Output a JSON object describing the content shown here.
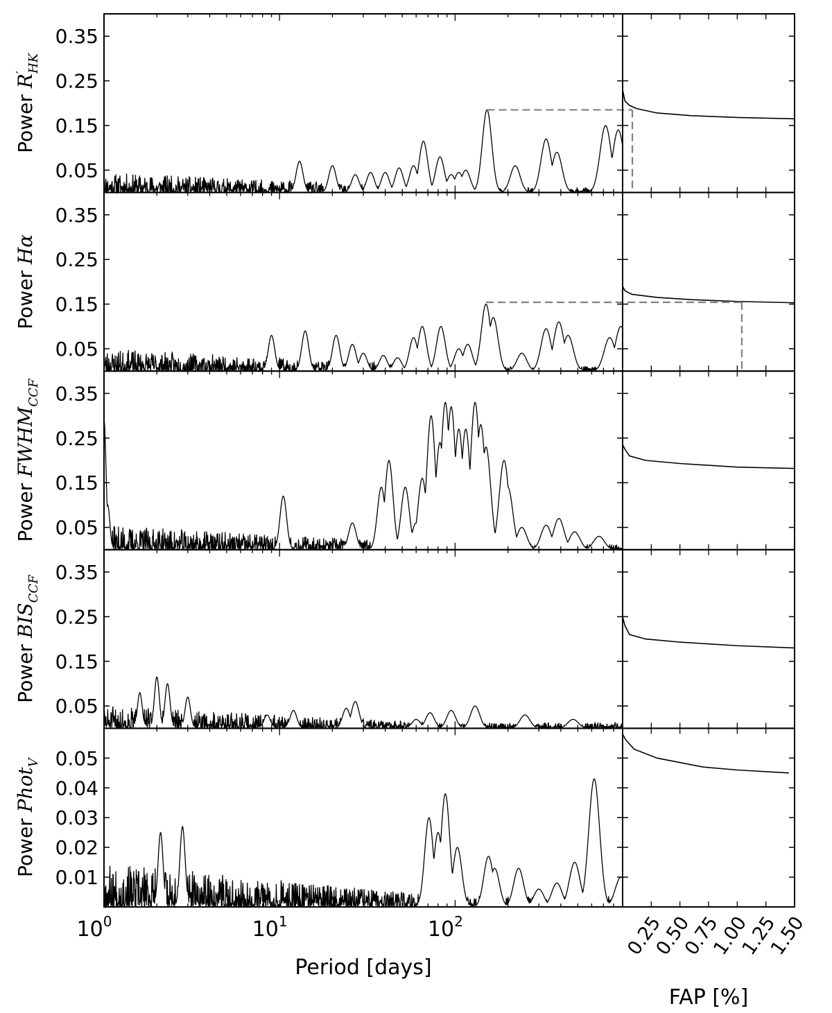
{
  "chart_data": {
    "type": "line",
    "x_axis": {
      "label": "Period [days]",
      "scale": "log",
      "range": [
        1,
        900
      ],
      "ticks": [
        {
          "value": 1,
          "base": "10",
          "exp": "0"
        },
        {
          "value": 10,
          "base": "10",
          "exp": "1"
        },
        {
          "value": 100,
          "base": "10",
          "exp": "2"
        }
      ]
    },
    "fap_axis": {
      "label": "FAP [%]",
      "range": [
        0,
        1.5
      ],
      "ticks": [
        "0.25",
        "0.50",
        "0.75",
        "1.00",
        "1.25",
        "1.50"
      ],
      "tick_values": [
        0.25,
        0.5,
        0.75,
        1.0,
        1.25,
        1.5
      ]
    },
    "line_color": "#000000",
    "threshold_color": "#808080",
    "panels": [
      {
        "id": "rhk",
        "ylabel_prefix": "Power ",
        "ylabel_math": "R",
        "ylabel_sup": "′",
        "ylabel_sub": "HK",
        "ylim": [
          0,
          0.4
        ],
        "yticks": [
          "0.35",
          "0.25",
          "0.15",
          "0.05"
        ],
        "ytick_values": [
          0.35,
          0.25,
          0.15,
          0.05
        ],
        "seed": 11,
        "noise_amp": 0.045,
        "peaks": [
          [
            13,
            0.07
          ],
          [
            20,
            0.06
          ],
          [
            27,
            0.04
          ],
          [
            33,
            0.045
          ],
          [
            40,
            0.045
          ],
          [
            48,
            0.055
          ],
          [
            58,
            0.06
          ],
          [
            66,
            0.115
          ],
          [
            82,
            0.08
          ],
          [
            95,
            0.04
          ],
          [
            105,
            0.045
          ],
          [
            115,
            0.05
          ],
          [
            152,
            0.185
          ],
          [
            220,
            0.06
          ],
          [
            330,
            0.12
          ],
          [
            380,
            0.09
          ],
          [
            720,
            0.15
          ],
          [
            850,
            0.14
          ]
        ],
        "threshold": {
          "period": 152,
          "power": 0.185,
          "fap": 0.085
        },
        "fap_curve": [
          [
            0.0,
            0.23
          ],
          [
            0.02,
            0.205
          ],
          [
            0.06,
            0.195
          ],
          [
            0.12,
            0.188
          ],
          [
            0.3,
            0.178
          ],
          [
            0.6,
            0.172
          ],
          [
            1.0,
            0.168
          ],
          [
            1.5,
            0.165
          ]
        ]
      },
      {
        "id": "halpha",
        "ylabel_prefix": "Power ",
        "ylabel_math": "Hα",
        "ylabel_sup": "",
        "ylabel_sub": "",
        "ylim": [
          0,
          0.4
        ],
        "yticks": [
          "0.35",
          "0.25",
          "0.15",
          "0.05"
        ],
        "ytick_values": [
          0.35,
          0.25,
          0.15,
          0.05
        ],
        "seed": 23,
        "noise_amp": 0.05,
        "peaks": [
          [
            9,
            0.08
          ],
          [
            14,
            0.09
          ],
          [
            21,
            0.08
          ],
          [
            26,
            0.06
          ],
          [
            30,
            0.04
          ],
          [
            39,
            0.035
          ],
          [
            47,
            0.03
          ],
          [
            58,
            0.075
          ],
          [
            65,
            0.1
          ],
          [
            83,
            0.1
          ],
          [
            105,
            0.05
          ],
          [
            118,
            0.06
          ],
          [
            150,
            0.15
          ],
          [
            165,
            0.12
          ],
          [
            240,
            0.04
          ],
          [
            330,
            0.095
          ],
          [
            390,
            0.11
          ],
          [
            440,
            0.08
          ],
          [
            760,
            0.075
          ],
          [
            880,
            0.1
          ]
        ],
        "threshold": {
          "period": 150,
          "power": 0.154,
          "fap": 1.04
        },
        "fap_curve": [
          [
            0.0,
            0.19
          ],
          [
            0.02,
            0.18
          ],
          [
            0.08,
            0.172
          ],
          [
            0.3,
            0.165
          ],
          [
            0.6,
            0.16
          ],
          [
            1.0,
            0.156
          ],
          [
            1.5,
            0.153
          ]
        ]
      },
      {
        "id": "fwhm",
        "ylabel_prefix": "Power ",
        "ylabel_math": "FWHM",
        "ylabel_sup": "",
        "ylabel_sub": "CCF",
        "ylim": [
          0,
          0.4
        ],
        "yticks": [
          "0.35",
          "0.25",
          "0.15",
          "0.05"
        ],
        "ytick_values": [
          0.35,
          0.25,
          0.15,
          0.05
        ],
        "seed": 37,
        "noise_amp": 0.055,
        "peaks": [
          [
            1.0,
            0.29
          ],
          [
            1.05,
            0.1
          ],
          [
            10.5,
            0.12
          ],
          [
            26,
            0.06
          ],
          [
            38,
            0.14
          ],
          [
            42,
            0.2
          ],
          [
            52,
            0.14
          ],
          [
            60,
            0.06
          ],
          [
            65,
            0.16
          ],
          [
            73,
            0.3
          ],
          [
            82,
            0.24
          ],
          [
            88,
            0.33
          ],
          [
            95,
            0.32
          ],
          [
            105,
            0.27
          ],
          [
            115,
            0.27
          ],
          [
            130,
            0.33
          ],
          [
            140,
            0.28
          ],
          [
            150,
            0.23
          ],
          [
            190,
            0.2
          ],
          [
            200,
            0.14
          ],
          [
            240,
            0.05
          ],
          [
            330,
            0.055
          ],
          [
            390,
            0.07
          ],
          [
            480,
            0.04
          ],
          [
            660,
            0.03
          ]
        ],
        "threshold": null,
        "fap_curve": [
          [
            0.0,
            0.235
          ],
          [
            0.02,
            0.225
          ],
          [
            0.06,
            0.21
          ],
          [
            0.2,
            0.2
          ],
          [
            0.5,
            0.193
          ],
          [
            1.0,
            0.185
          ],
          [
            1.5,
            0.182
          ]
        ]
      },
      {
        "id": "bis",
        "ylabel_prefix": "Power ",
        "ylabel_math": "BIS",
        "ylabel_sup": "",
        "ylabel_sub": "CCF",
        "ylim": [
          0,
          0.4
        ],
        "yticks": [
          "0.35",
          "0.25",
          "0.15",
          "0.05"
        ],
        "ytick_values": [
          0.35,
          0.25,
          0.15,
          0.05
        ],
        "seed": 51,
        "noise_amp": 0.05,
        "peaks": [
          [
            1.6,
            0.08
          ],
          [
            2.0,
            0.115
          ],
          [
            2.3,
            0.1
          ],
          [
            3.0,
            0.07
          ],
          [
            8.5,
            0.03
          ],
          [
            12,
            0.04
          ],
          [
            24,
            0.045
          ],
          [
            27,
            0.06
          ],
          [
            60,
            0.02
          ],
          [
            72,
            0.035
          ],
          [
            95,
            0.04
          ],
          [
            130,
            0.05
          ],
          [
            250,
            0.03
          ],
          [
            470,
            0.02
          ]
        ],
        "threshold": null,
        "fap_curve": [
          [
            0.0,
            0.25
          ],
          [
            0.02,
            0.23
          ],
          [
            0.06,
            0.21
          ],
          [
            0.2,
            0.2
          ],
          [
            0.5,
            0.193
          ],
          [
            1.0,
            0.185
          ],
          [
            1.5,
            0.18
          ]
        ]
      },
      {
        "id": "phot",
        "ylabel_prefix": "Power ",
        "ylabel_math": "Phot",
        "ylabel_sup": "",
        "ylabel_sub": "V",
        "ylim": [
          0,
          0.06
        ],
        "yticks": [
          "0.05",
          "0.04",
          "0.03",
          "0.02",
          "0.01"
        ],
        "ytick_values": [
          0.05,
          0.04,
          0.03,
          0.02,
          0.01
        ],
        "seed": 67,
        "noise_amp": 0.015,
        "peaks": [
          [
            2.1,
            0.025
          ],
          [
            2.8,
            0.027
          ],
          [
            71,
            0.03
          ],
          [
            80,
            0.025
          ],
          [
            88,
            0.038
          ],
          [
            103,
            0.02
          ],
          [
            155,
            0.017
          ],
          [
            168,
            0.013
          ],
          [
            230,
            0.013
          ],
          [
            300,
            0.006
          ],
          [
            380,
            0.008
          ],
          [
            480,
            0.015
          ],
          [
            620,
            0.043
          ],
          [
            880,
            0.01
          ]
        ],
        "threshold": null,
        "fap_curve": [
          [
            0.0,
            0.058
          ],
          [
            0.03,
            0.056
          ],
          [
            0.1,
            0.053
          ],
          [
            0.3,
            0.05
          ],
          [
            0.7,
            0.047
          ],
          [
            1.0,
            0.046
          ],
          [
            1.45,
            0.045
          ]
        ]
      }
    ]
  }
}
